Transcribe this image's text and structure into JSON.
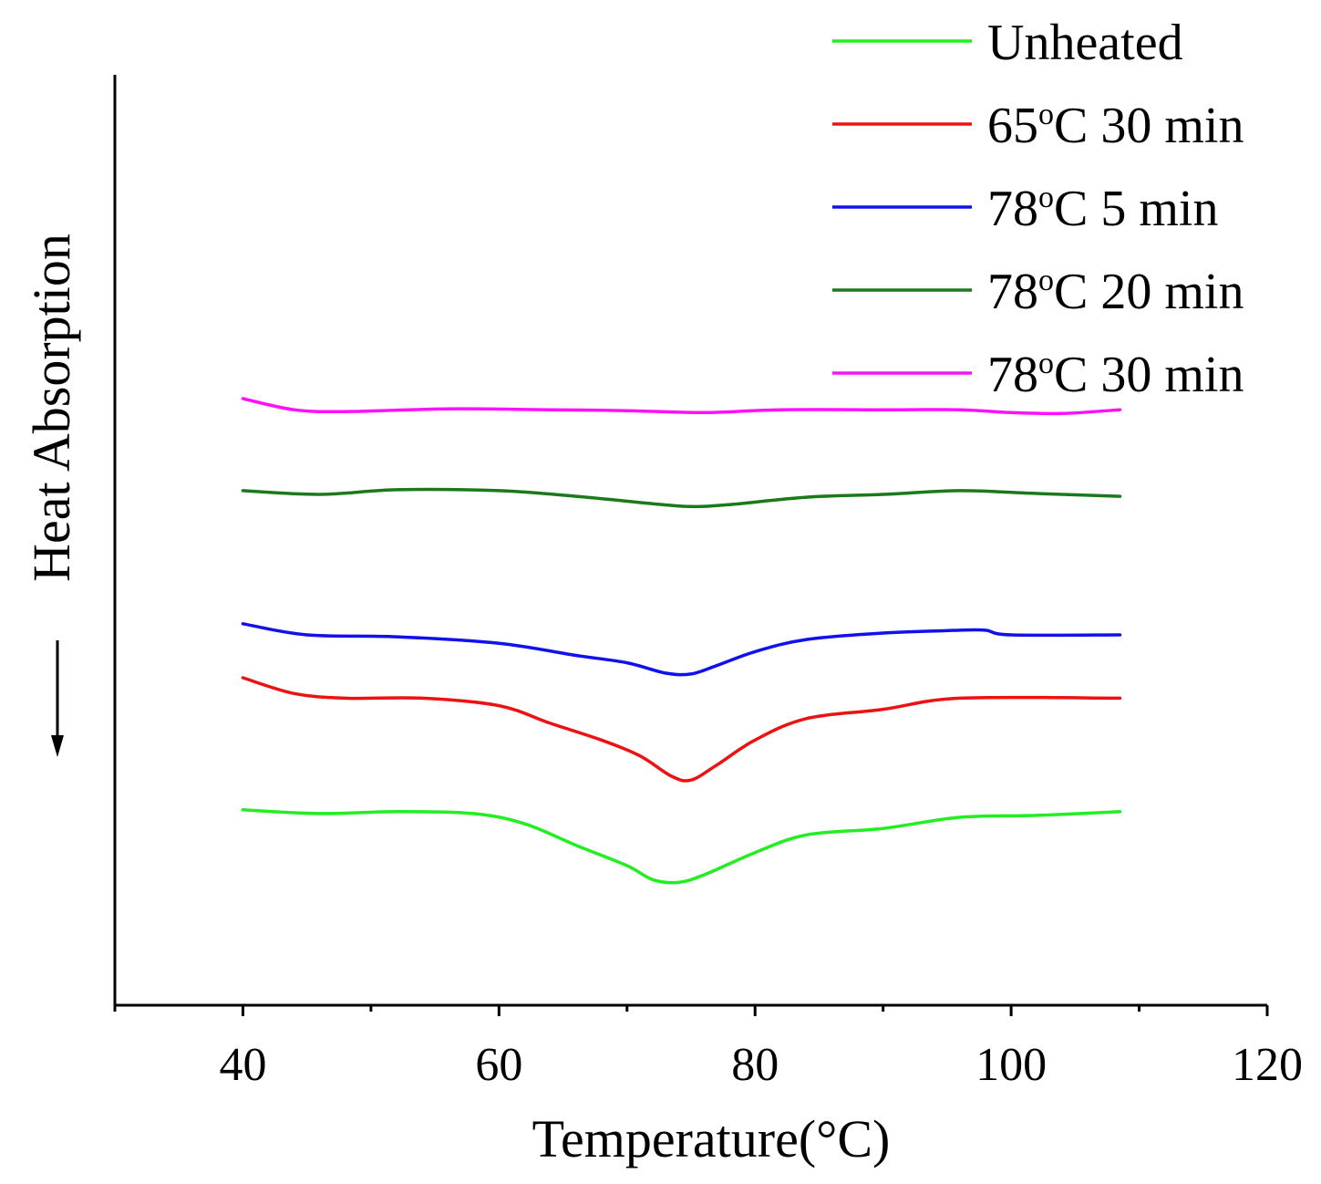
{
  "chart_data": {
    "type": "line",
    "title": "",
    "xlabel": "Temperature(°C)",
    "ylabel": "Heat Absorption",
    "ylabel_arrow": "down",
    "xlim": [
      30,
      120
    ],
    "ylim": [
      0,
      100
    ],
    "y_ticks_shown": false,
    "x_ticks": [
      40,
      60,
      80,
      100,
      120
    ],
    "x_tick_labels": [
      "40",
      "60",
      "80",
      "100",
      "120"
    ],
    "x_minor_ticks": [
      30,
      50,
      70,
      90,
      110
    ],
    "legend_position": "top-right",
    "series": [
      {
        "name": "Unheated",
        "color": "#22ee22",
        "legend": {
          "base": "Unheated",
          "sup": "",
          "rest": ""
        },
        "points": [
          [
            40,
            21.0
          ],
          [
            46,
            20.6
          ],
          [
            52,
            20.8
          ],
          [
            58,
            20.6
          ],
          [
            62,
            19.5
          ],
          [
            66,
            17.2
          ],
          [
            70,
            15.0
          ],
          [
            72,
            13.5
          ],
          [
            74,
            13.2
          ],
          [
            76,
            14.0
          ],
          [
            80,
            16.4
          ],
          [
            84,
            18.3
          ],
          [
            90,
            19.0
          ],
          [
            96,
            20.2
          ],
          [
            102,
            20.4
          ],
          [
            108.5,
            20.8
          ]
        ]
      },
      {
        "name": "65°C 30 min",
        "color": "#ee1111",
        "legend": {
          "base": "65",
          "sup": "o",
          "rest": "C 30 min"
        },
        "points": [
          [
            40,
            35.2
          ],
          [
            44,
            33.5
          ],
          [
            48,
            33.0
          ],
          [
            54,
            33.0
          ],
          [
            60,
            32.2
          ],
          [
            64,
            30.3
          ],
          [
            68,
            28.5
          ],
          [
            71,
            26.8
          ],
          [
            73.5,
            24.6
          ],
          [
            75,
            24.2
          ],
          [
            77,
            25.8
          ],
          [
            80,
            28.5
          ],
          [
            84,
            30.8
          ],
          [
            90,
            31.8
          ],
          [
            96,
            33.0
          ],
          [
            108.5,
            33.0
          ]
        ]
      },
      {
        "name": "78°C 5 min",
        "color": "#1111ee",
        "legend": {
          "base": "78",
          "sup": "o",
          "rest": "C 5 min"
        },
        "points": [
          [
            40,
            41.0
          ],
          [
            45,
            39.8
          ],
          [
            52,
            39.6
          ],
          [
            60,
            38.9
          ],
          [
            66,
            37.6
          ],
          [
            70,
            36.8
          ],
          [
            73,
            35.7
          ],
          [
            75,
            35.6
          ],
          [
            77,
            36.5
          ],
          [
            80,
            38.0
          ],
          [
            84,
            39.3
          ],
          [
            90,
            40.0
          ],
          [
            96,
            40.3
          ],
          [
            98,
            40.3
          ],
          [
            100,
            39.8
          ],
          [
            108.5,
            39.8
          ]
        ]
      },
      {
        "name": "78°C 20 min",
        "color": "#1a7a1a",
        "legend": {
          "base": "78",
          "sup": "o",
          "rest": "C 20 min"
        },
        "points": [
          [
            40,
            55.3
          ],
          [
            46,
            54.9
          ],
          [
            52,
            55.4
          ],
          [
            60,
            55.3
          ],
          [
            66,
            54.7
          ],
          [
            72,
            53.9
          ],
          [
            75,
            53.6
          ],
          [
            78,
            53.8
          ],
          [
            84,
            54.6
          ],
          [
            90,
            54.9
          ],
          [
            96,
            55.3
          ],
          [
            102,
            55.0
          ],
          [
            108.5,
            54.7
          ]
        ]
      },
      {
        "name": "78°C 30 min",
        "color": "#ff11ff",
        "legend": {
          "base": "78",
          "sup": "o",
          "rest": "C 30 min"
        },
        "points": [
          [
            40,
            65.2
          ],
          [
            44,
            64.0
          ],
          [
            48,
            63.8
          ],
          [
            56,
            64.1
          ],
          [
            64,
            64.0
          ],
          [
            70,
            63.9
          ],
          [
            76,
            63.7
          ],
          [
            82,
            64.0
          ],
          [
            90,
            64.0
          ],
          [
            96,
            64.0
          ],
          [
            100,
            63.7
          ],
          [
            104,
            63.6
          ],
          [
            108.5,
            64.0
          ]
        ]
      }
    ]
  }
}
